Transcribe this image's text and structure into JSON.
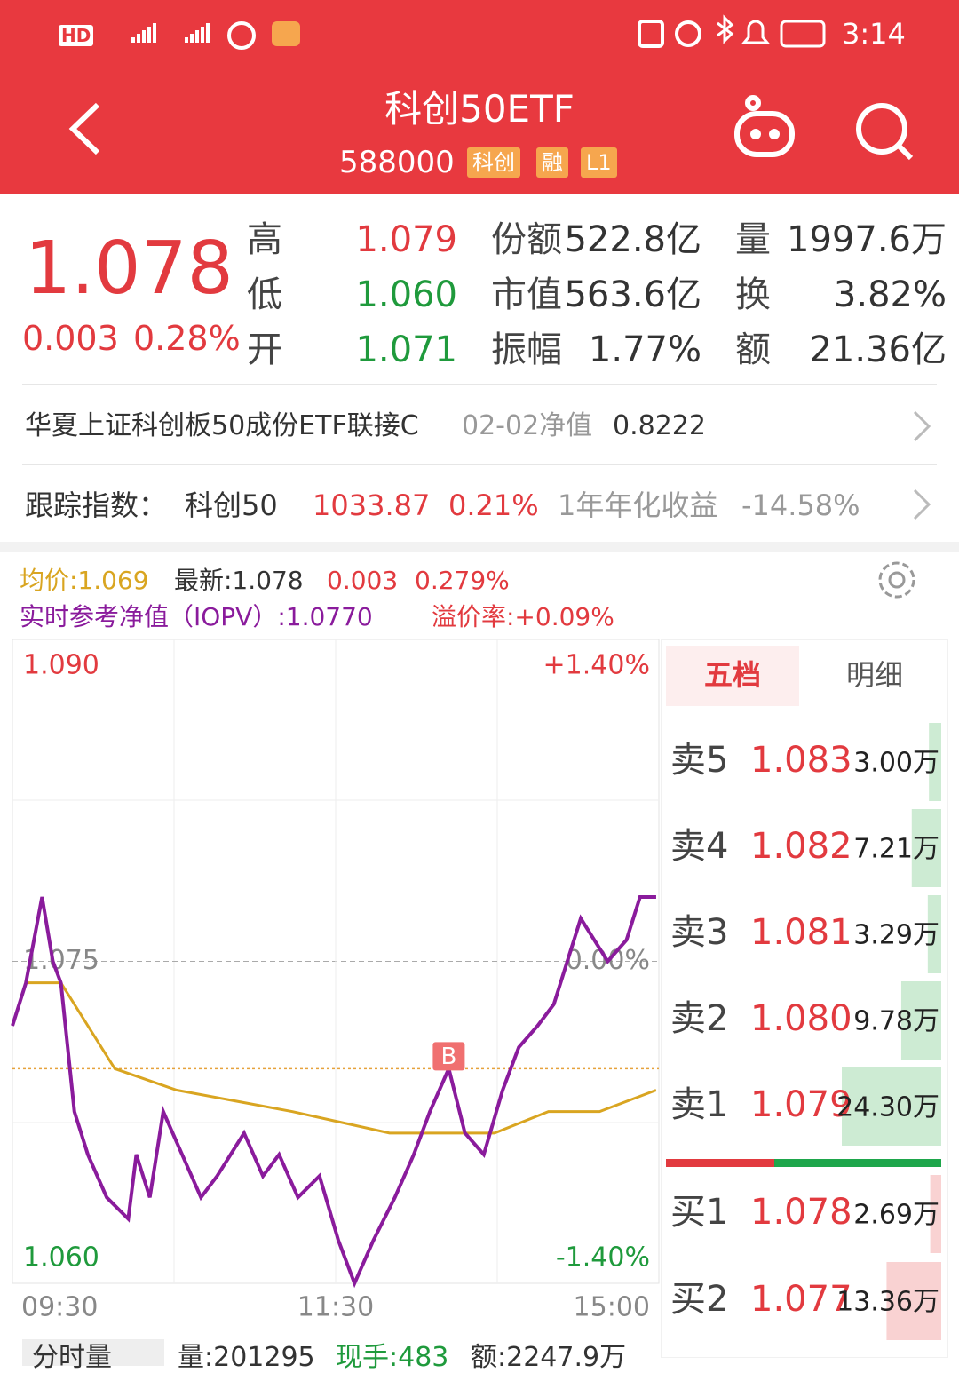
{
  "status_bar": {
    "network": "HD",
    "time": "3:14"
  },
  "header": {
    "title": "科创50ETF",
    "code": "588000",
    "tags": [
      "科创",
      "融",
      "L1"
    ]
  },
  "quote": {
    "price": "1.078",
    "change": "0.003",
    "change_pct": "0.28%",
    "stats": [
      [
        {
          "label": "高",
          "value": "1.079"
        },
        {
          "label": "份额",
          "value": "522.8亿"
        },
        {
          "label": "量",
          "value": "1997.6万"
        }
      ],
      [
        {
          "label": "低",
          "value": "1.060"
        },
        {
          "label": "市值",
          "value": "563.6亿"
        },
        {
          "label": "换",
          "value": "3.82%"
        }
      ],
      [
        {
          "label": "开",
          "value": "1.071"
        },
        {
          "label": "振幅",
          "value": "1.77%"
        },
        {
          "label": "额",
          "value": "21.36亿"
        }
      ]
    ]
  },
  "linked_fund": {
    "name": "华夏上证科创板50成份ETF联接C",
    "date_label": "02-02净值",
    "value": "0.8222"
  },
  "tracking": {
    "label": "跟踪指数：",
    "index": "科创50",
    "value": "1033.87",
    "pct": "0.21%",
    "return_label": "1年年化收益",
    "return": "-14.58%"
  },
  "chart_info": {
    "avg": "均价:1.069",
    "latest": "最新:1.078",
    "change": "0.003",
    "pct": "0.279%",
    "iopv": "实时参考净值（IOPV）:1.0770",
    "premium": "溢价率:+0.09%"
  },
  "chart_data": {
    "type": "line",
    "xlim": [
      0,
      240
    ],
    "xticks": [
      {
        "value": 0,
        "label": "09:30"
      },
      {
        "value": 120,
        "label": "11:30"
      },
      {
        "value": 240,
        "label": "15:00"
      }
    ],
    "ylim": [
      1.06,
      1.09
    ],
    "yticks": [
      {
        "value": 1.06,
        "label": "1.060"
      },
      {
        "value": 1.075,
        "label": "1.075"
      },
      {
        "value": 1.09,
        "label": "1.090"
      }
    ],
    "y2lim": [
      -1.4,
      1.4
    ],
    "y2ticks": [
      {
        "value": -1.4,
        "label": "-1.40%"
      },
      {
        "value": 0,
        "label": "0.00%"
      },
      {
        "value": 1.4,
        "label": "+1.40%"
      }
    ],
    "series": [
      {
        "color": "#8a1b9c",
        "x": [
          0,
          5,
          11,
          15,
          18,
          23,
          28,
          35,
          43,
          46,
          51,
          56,
          63,
          70,
          76,
          81,
          86,
          93,
          99,
          106,
          114,
          121,
          127,
          134,
          142,
          149,
          155,
          162,
          168,
          175,
          182,
          188,
          195,
          201,
          206,
          211,
          216,
          221,
          228,
          233,
          239
        ],
        "values": [
          1.072,
          1.074,
          1.078,
          1.075,
          1.074,
          1.068,
          1.066,
          1.064,
          1.063,
          1.066,
          1.064,
          1.068,
          1.066,
          1.064,
          1.065,
          1.066,
          1.067,
          1.065,
          1.066,
          1.064,
          1.065,
          1.062,
          1.06,
          1.062,
          1.064,
          1.066,
          1.068,
          1.07,
          1.067,
          1.066,
          1.069,
          1.071,
          1.072,
          1.073,
          1.075,
          1.077,
          1.076,
          1.075,
          1.076,
          1.078,
          1.078
        ]
      },
      {
        "color": "#d9a521",
        "x": [
          5,
          18,
          38,
          61,
          104,
          140,
          153,
          179,
          199,
          218,
          239
        ],
        "values": [
          1.074,
          1.074,
          1.07,
          1.069,
          1.068,
          1.067,
          1.067,
          1.067,
          1.068,
          1.068,
          1.069
        ]
      }
    ],
    "marker": {
      "label": "B",
      "x": 162,
      "value": 1.07
    }
  },
  "order_book": {
    "tabs": [
      "五档",
      "明细"
    ],
    "asks": [
      {
        "level": "卖5",
        "price": "1.083",
        "volume": 3.0,
        "volume_label": "3.00万"
      },
      {
        "level": "卖4",
        "price": "1.082",
        "volume": 7.21,
        "volume_label": "7.21万"
      },
      {
        "level": "卖3",
        "price": "1.081",
        "volume": 3.29,
        "volume_label": "3.29万"
      },
      {
        "level": "卖2",
        "price": "1.080",
        "volume": 9.78,
        "volume_label": "9.78万"
      },
      {
        "level": "卖1",
        "price": "1.079",
        "volume": 24.3,
        "volume_label": "24.30万"
      }
    ],
    "bids": [
      {
        "level": "买1",
        "price": "1.078",
        "volume": 2.69,
        "volume_label": "2.69万"
      },
      {
        "level": "买2",
        "price": "1.077",
        "volume": 13.36,
        "volume_label": "13.36万"
      }
    ]
  },
  "bottom_bar": {
    "tab": "分时量",
    "volume": "量:201295",
    "hand": "现手:483",
    "amount": "额:2247.9万"
  }
}
